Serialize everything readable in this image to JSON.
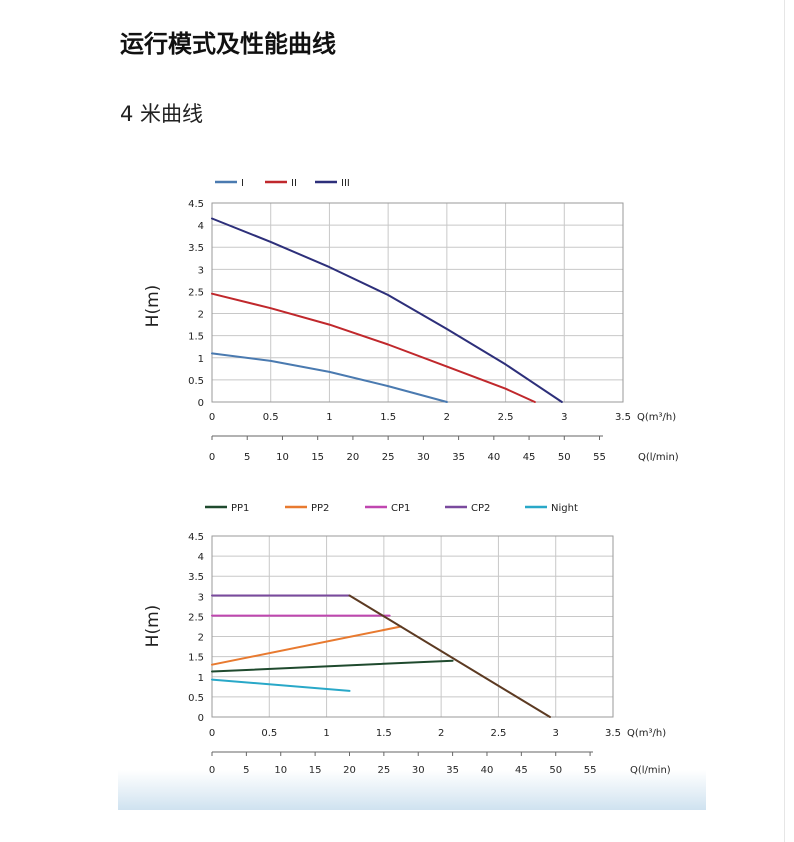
{
  "header": {
    "title": "运行模式及性能曲线",
    "subtitle": "4 米曲线"
  },
  "chart_data": [
    {
      "type": "line",
      "legend_position": "top-left",
      "ylabel": "H(m)",
      "xlabel": "Q(m³/h)",
      "xlabel_secondary": "Q(l/min)",
      "xlim": [
        0,
        3.5
      ],
      "ylim": [
        0,
        4.5
      ],
      "x_ticks": [
        "0",
        "0.5",
        "1",
        "1.5",
        "2",
        "2.5",
        "3",
        "3.5"
      ],
      "y_ticks": [
        "0",
        "0.5",
        "1",
        "1.5",
        "2",
        "2.5",
        "3",
        "3.5",
        "4",
        "4.5"
      ],
      "secondary_ticks": [
        "0",
        "5",
        "10",
        "15",
        "20",
        "25",
        "30",
        "35",
        "40",
        "45",
        "50",
        "55"
      ],
      "grid": true,
      "series": [
        {
          "name": "I",
          "color": "#4a7ab0",
          "x": [
            0,
            0.5,
            1,
            1.5,
            2
          ],
          "y": [
            1.1,
            0.93,
            0.68,
            0.36,
            0
          ]
        },
        {
          "name": "II",
          "color": "#c0282c",
          "x": [
            0,
            0.5,
            1,
            1.5,
            2,
            2.5,
            2.75
          ],
          "y": [
            2.45,
            2.12,
            1.75,
            1.3,
            0.8,
            0.3,
            0
          ]
        },
        {
          "name": "III",
          "color": "#2d2f7a",
          "x": [
            0,
            0.5,
            1,
            1.5,
            2,
            2.5,
            2.98
          ],
          "y": [
            4.15,
            3.62,
            3.05,
            2.42,
            1.65,
            0.85,
            0
          ]
        }
      ]
    },
    {
      "type": "line",
      "legend_position": "top-left",
      "ylabel": "H(m)",
      "xlabel": "Q(m³/h)",
      "xlabel_secondary": "Q(l/min)",
      "xlim": [
        0,
        3.5
      ],
      "ylim": [
        0,
        4.5
      ],
      "x_ticks": [
        "0",
        "0.5",
        "1",
        "1.5",
        "2",
        "2.5",
        "3",
        "3.5"
      ],
      "y_ticks": [
        "0",
        "0.5",
        "1",
        "1.5",
        "2",
        "2.5",
        "3",
        "3.5",
        "4",
        "4.5"
      ],
      "secondary_ticks": [
        "0",
        "5",
        "10",
        "15",
        "20",
        "25",
        "30",
        "35",
        "40",
        "45",
        "50",
        "55"
      ],
      "grid": true,
      "series": [
        {
          "name": "PP1",
          "color": "#1f4a2e",
          "x": [
            0,
            2.1
          ],
          "y": [
            1.13,
            1.4
          ]
        },
        {
          "name": "PP2",
          "color": "#e87a30",
          "x": [
            0,
            1.65
          ],
          "y": [
            1.3,
            2.25
          ]
        },
        {
          "name": "CP1",
          "color": "#c046b0",
          "x": [
            0,
            1.55
          ],
          "y": [
            2.52,
            2.52
          ]
        },
        {
          "name": "CP2",
          "color": "#7a4a9e",
          "x": [
            0,
            1.2
          ],
          "y": [
            3.02,
            3.02
          ]
        },
        {
          "name": "Night",
          "color": "#29a8c8",
          "x": [
            0,
            1.2
          ],
          "y": [
            0.93,
            0.65
          ]
        },
        {
          "name": "",
          "color": "#5c3a22",
          "legend": false,
          "x": [
            1.2,
            2.95
          ],
          "y": [
            3.02,
            0
          ]
        }
      ]
    }
  ]
}
